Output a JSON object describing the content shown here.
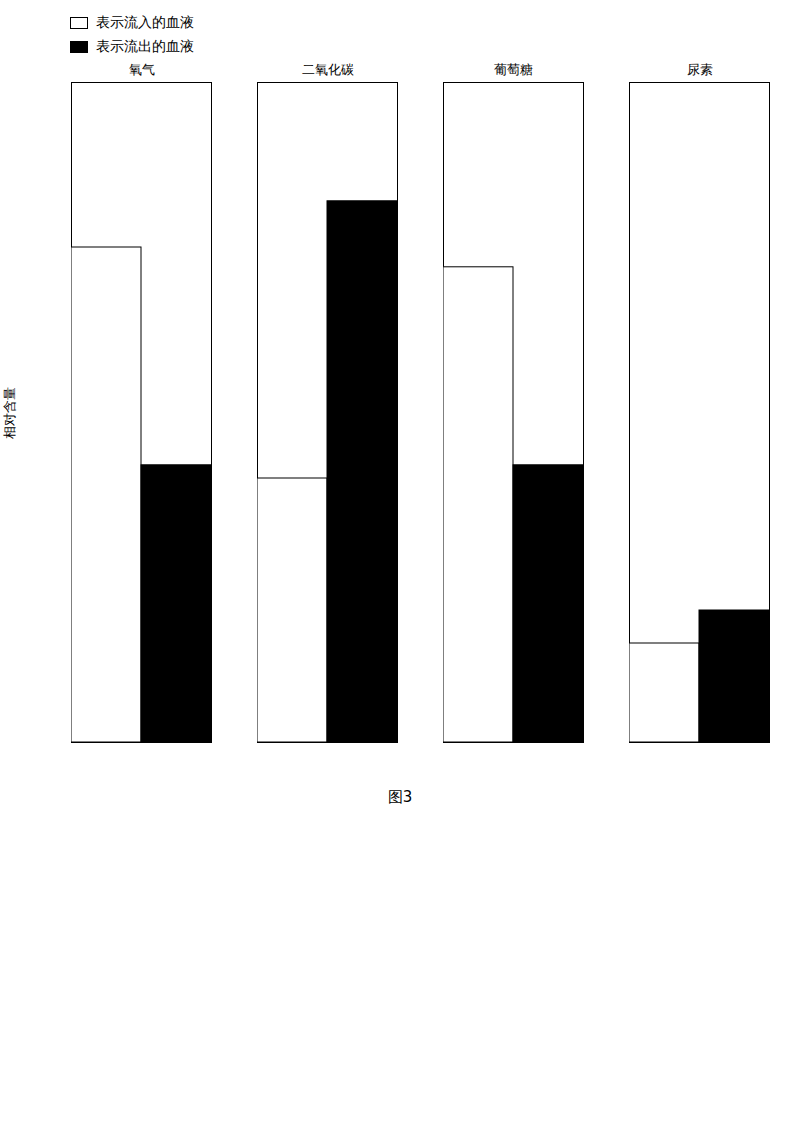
{
  "chart_data": {
    "type": "bar",
    "title": "图3",
    "categories": [
      "氧气",
      "二氧化碳",
      "葡萄糖",
      "尿素"
    ],
    "series": [
      {
        "name": "表示流入的血液",
        "color": "#ffffff",
        "values": [
          0.75,
          0.4,
          0.72,
          0.15
        ]
      },
      {
        "name": "表示流出的血液",
        "color": "#000000",
        "values": [
          0.42,
          0.82,
          0.42,
          0.2
        ]
      }
    ],
    "ylabel": "相对含量",
    "ylim": [
      0,
      1.0
    ],
    "tick_labels": "x",
    "grid": false,
    "legend": "top"
  }
}
